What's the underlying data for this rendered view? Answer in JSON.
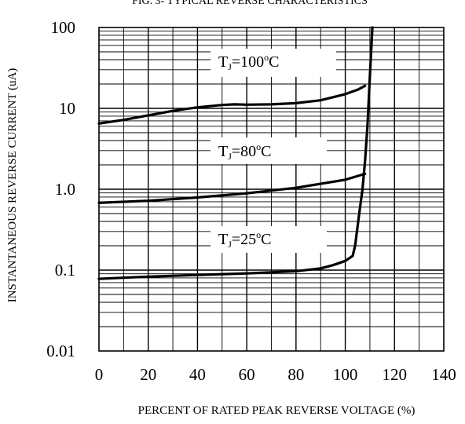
{
  "chart_data": {
    "type": "line",
    "title": "FIG. 3- TYPICAL REVERSE CHARACTERISTICS",
    "xlabel": "PERCENT OF RATED PEAK REVERSE VOLTAGE (%)",
    "ylabel": "INSTANTANEOUS REVERSE CURRENT (uA)",
    "xlim": [
      0,
      140
    ],
    "ylim": [
      0.01,
      100
    ],
    "yscale": "log",
    "grid": true,
    "x_ticks": [
      0,
      20,
      40,
      60,
      80,
      100,
      120,
      140
    ],
    "x_tick_labels": [
      "0",
      "20",
      "40",
      "60",
      "80",
      "100",
      "120",
      "140"
    ],
    "y_ticks": [
      100,
      10,
      1,
      0.1,
      0.01
    ],
    "y_tick_labels": [
      "100",
      "10",
      "1.0",
      "0.1",
      "0.01"
    ],
    "series": [
      {
        "name": "TJ=100°C",
        "label": {
          "main": "T",
          "sub": "J",
          "rest": "=100",
          "sup": "o",
          "unit": "C"
        },
        "x": [
          0,
          10,
          20,
          30,
          40,
          50,
          55,
          60,
          70,
          80,
          90,
          100,
          105,
          108
        ],
        "y": [
          6.5,
          7.2,
          8.2,
          9.3,
          10.3,
          11.0,
          11.2,
          11.1,
          11.2,
          11.6,
          12.6,
          15.0,
          17.0,
          19.0
        ]
      },
      {
        "name": "TJ=80°C",
        "label": {
          "main": "T",
          "sub": "J",
          "rest": "=80",
          "sup": "o",
          "unit": "C"
        },
        "x": [
          0,
          20,
          40,
          60,
          80,
          100,
          108
        ],
        "y": [
          0.68,
          0.72,
          0.79,
          0.89,
          1.04,
          1.31,
          1.55
        ]
      },
      {
        "name": "TJ=25°C",
        "label": {
          "main": "T",
          "sub": "J",
          "rest": "=25",
          "sup": "o",
          "unit": "C"
        },
        "x": [
          0,
          20,
          40,
          60,
          80,
          90,
          95,
          100,
          103,
          104,
          105,
          106,
          107,
          108,
          109,
          110,
          111
        ],
        "y": [
          0.078,
          0.083,
          0.087,
          0.091,
          0.097,
          0.105,
          0.115,
          0.13,
          0.15,
          0.2,
          0.35,
          0.6,
          1.0,
          2.2,
          6,
          25,
          100
        ]
      }
    ]
  }
}
